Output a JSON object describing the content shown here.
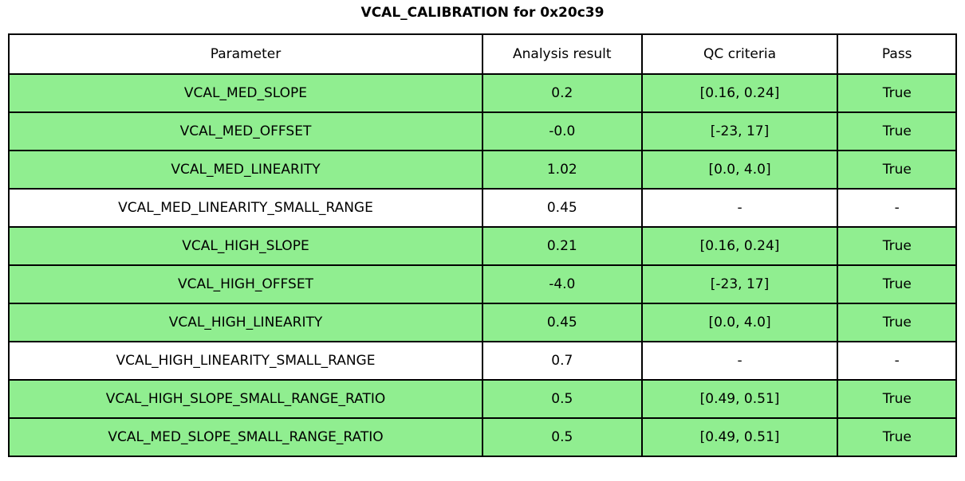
{
  "title": "VCAL_CALIBRATION for 0x20c39",
  "colors": {
    "pass_row_bg": "#90EE90",
    "neutral_row_bg": "#FFFFFF",
    "border": "#000000",
    "text": "#000000"
  },
  "chart_data": {
    "type": "table",
    "title": "VCAL_CALIBRATION for 0x20c39",
    "columns": [
      "Parameter",
      "Analysis result",
      "QC criteria",
      "Pass"
    ],
    "rows": [
      {
        "parameter": "VCAL_MED_SLOPE",
        "analysis_result": "0.2",
        "qc_criteria": "[0.16, 0.24]",
        "pass": "True",
        "highlighted": true
      },
      {
        "parameter": "VCAL_MED_OFFSET",
        "analysis_result": "-0.0",
        "qc_criteria": "[-23, 17]",
        "pass": "True",
        "highlighted": true
      },
      {
        "parameter": "VCAL_MED_LINEARITY",
        "analysis_result": "1.02",
        "qc_criteria": "[0.0, 4.0]",
        "pass": "True",
        "highlighted": true
      },
      {
        "parameter": "VCAL_MED_LINEARITY_SMALL_RANGE",
        "analysis_result": "0.45",
        "qc_criteria": "-",
        "pass": "-",
        "highlighted": false
      },
      {
        "parameter": "VCAL_HIGH_SLOPE",
        "analysis_result": "0.21",
        "qc_criteria": "[0.16, 0.24]",
        "pass": "True",
        "highlighted": true
      },
      {
        "parameter": "VCAL_HIGH_OFFSET",
        "analysis_result": "-4.0",
        "qc_criteria": "[-23, 17]",
        "pass": "True",
        "highlighted": true
      },
      {
        "parameter": "VCAL_HIGH_LINEARITY",
        "analysis_result": "0.45",
        "qc_criteria": "[0.0, 4.0]",
        "pass": "True",
        "highlighted": true
      },
      {
        "parameter": "VCAL_HIGH_LINEARITY_SMALL_RANGE",
        "analysis_result": "0.7",
        "qc_criteria": "-",
        "pass": "-",
        "highlighted": false
      },
      {
        "parameter": "VCAL_HIGH_SLOPE_SMALL_RANGE_RATIO",
        "analysis_result": "0.5",
        "qc_criteria": "[0.49, 0.51]",
        "pass": "True",
        "highlighted": true
      },
      {
        "parameter": "VCAL_MED_SLOPE_SMALL_RANGE_RATIO",
        "analysis_result": "0.5",
        "qc_criteria": "[0.49, 0.51]",
        "pass": "True",
        "highlighted": true
      }
    ]
  }
}
